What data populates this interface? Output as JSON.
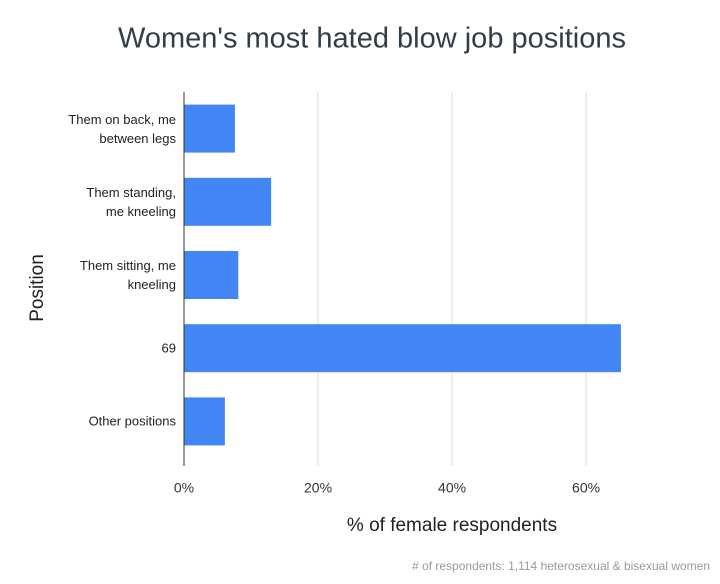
{
  "chart_data": {
    "type": "bar",
    "orientation": "horizontal",
    "title": "Women's most hated blow job positions",
    "x_label": "% of female respondents",
    "y_label": "Position",
    "footnote": "# of respondents: 1,114 heterosexual & bisexual women",
    "categories": [
      "Them on back, me\nbetween legs",
      "Them standing,\nme kneeling",
      "Them sitting, me\nkneeling",
      "69",
      "Other positions"
    ],
    "values": [
      7.6,
      13,
      8.1,
      65.2,
      6.1
    ],
    "color": "#4285f4",
    "xlim": [
      0,
      77
    ],
    "xticks": [
      {
        "value": 0,
        "label": "0%"
      },
      {
        "value": 20,
        "label": "20%"
      },
      {
        "value": 40,
        "label": "40%"
      },
      {
        "value": 60,
        "label": "60%"
      }
    ],
    "grid": true
  }
}
